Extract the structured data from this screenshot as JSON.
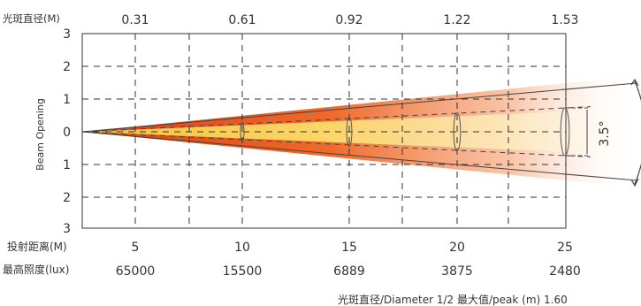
{
  "chart_data": {
    "type": "beam-spread",
    "top_axis": {
      "label": "光斑直径(M)",
      "values": [
        "0.31",
        "0.61",
        "0.92",
        "1.22",
        "1.53"
      ]
    },
    "y_axis": {
      "label": "Beam Opening",
      "ticks": [
        "3",
        "2",
        "1",
        "0",
        "1",
        "2",
        "3"
      ],
      "range": [
        -3,
        3
      ]
    },
    "distance_row": {
      "label": "投射距离(M)",
      "values": [
        "5",
        "10",
        "15",
        "20",
        "25"
      ]
    },
    "illuminance_row": {
      "label": "最高照度(lux)",
      "values": [
        "65000",
        "15500",
        "6889",
        "3875",
        "2480"
      ]
    },
    "beam_angle_label": "3.5°",
    "footnote": "光斑直径/Diameter 1/2 最大值/peak (m) 1.60",
    "series": [
      {
        "distance_m": 5,
        "diameter_m": 0.31,
        "peak_lux": 65000
      },
      {
        "distance_m": 10,
        "diameter_m": 0.61,
        "peak_lux": 15500
      },
      {
        "distance_m": 15,
        "diameter_m": 0.92,
        "peak_lux": 6889
      },
      {
        "distance_m": 20,
        "diameter_m": 1.22,
        "peak_lux": 3875
      },
      {
        "distance_m": 25,
        "diameter_m": 1.53,
        "peak_lux": 2480
      }
    ],
    "grid": true,
    "colors": {
      "beam_outer": "#e8501e",
      "beam_core": "#f7c948",
      "grid": "#333333"
    }
  }
}
